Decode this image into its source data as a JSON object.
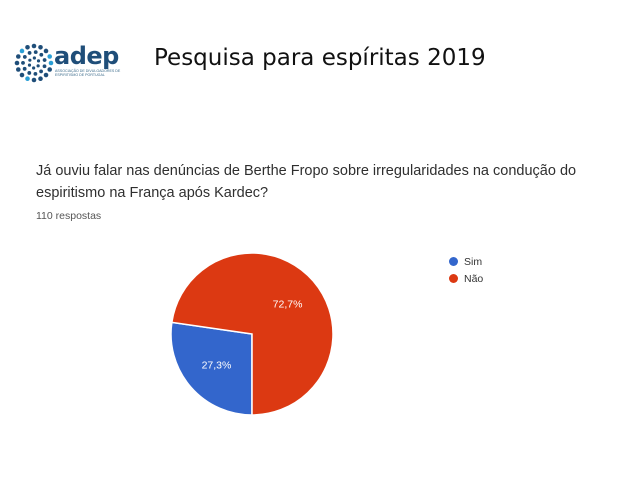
{
  "logo": {
    "name": "adep",
    "subtitle": "Associação de Divulgadores de Espiritismo de Portugal",
    "colors": {
      "dots": "#1f4e79",
      "word": "#1f4e79",
      "accent": "#2a9fd6"
    }
  },
  "slide": {
    "title": "Pesquisa para espíritas  2019"
  },
  "question": {
    "line1": "Já ouviu falar nas denúncias de Berthe Fropo sobre irregularidades na condução do",
    "line2": "espiritismo na França após Kardec?",
    "responses": "110 respostas"
  },
  "chart_data": {
    "type": "pie",
    "title": "",
    "slices": [
      {
        "label": "Sim",
        "value": 27.3,
        "value_label": "27,3%",
        "color": "#3366cc"
      },
      {
        "label": "Não",
        "value": 72.7,
        "value_label": "72,7%",
        "color": "#dc3912"
      }
    ],
    "start_angle_deg": 90,
    "direction": "clockwise",
    "legend_position": "right"
  }
}
